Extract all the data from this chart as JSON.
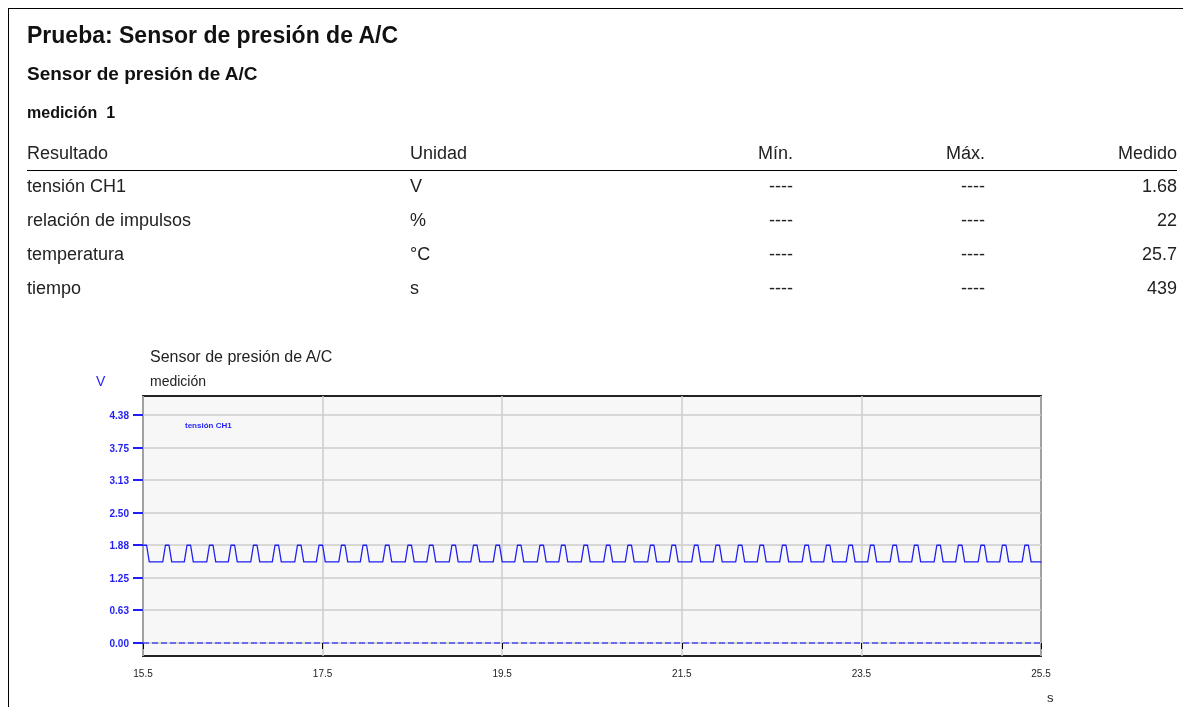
{
  "chart_data": [
    {
      "type": "other",
      "title": "Prueba: Sensor de presión de A/C",
      "subtitle": "Sensor de presión de A/C",
      "annotations": [
        "medición  1",
        "Resultado",
        "Unidad",
        "Mín.",
        "Máx.",
        "Medido",
        "tensión CH1",
        "V",
        "----",
        "----",
        "1.68",
        "relación de impulsos",
        "%",
        "----",
        "----",
        "22",
        "temperatura",
        "°C",
        "----",
        "----",
        "25.7",
        "tiempo",
        "s",
        "----",
        "----",
        "439"
      ]
    },
    {
      "type": "line",
      "title": "Sensor de presión de A/C",
      "subtitle": "medición",
      "ylabel": "V",
      "xlabel": "s",
      "xlim": [
        15.5,
        25.5
      ],
      "xticks": [
        15.5,
        17.5,
        19.5,
        21.5,
        23.5,
        25.5
      ],
      "ylim": [
        -0.25,
        4.75
      ],
      "yticks": [
        {
          "value": 0,
          "label": "0.00"
        },
        0.63,
        1.25,
        1.88,
        {
          "value": 2.5,
          "label": "2.50"
        },
        3.13,
        3.75,
        4.38
      ],
      "grid": true,
      "legend": "top left",
      "marker": "none",
      "line_style": "solid",
      "ref_lines": [
        {
          "axis": "y",
          "value": 0,
          "color": "#4a4af0",
          "line_style": "dashed"
        }
      ],
      "series": [
        {
          "name": "tensión CH1",
          "color": "#1f1ff5",
          "x": [
            15.5,
            15.54,
            15.57,
            15.72,
            15.75,
            15.79,
            15.82,
            15.96,
            15.99,
            16.03,
            16.06,
            16.21,
            16.24,
            16.28,
            16.31,
            16.45,
            16.48,
            16.52,
            16.55,
            16.7,
            16.73,
            16.77,
            16.8,
            16.94,
            16.97,
            17.01,
            17.04,
            17.19,
            17.22,
            17.26,
            17.29,
            17.43,
            17.46,
            17.5,
            17.53,
            17.68,
            17.71,
            17.75,
            17.78,
            17.92,
            17.95,
            17.99,
            18.02,
            18.17,
            18.2,
            18.24,
            18.27,
            18.42,
            18.45,
            18.49,
            18.52,
            18.66,
            18.69,
            18.73,
            18.76,
            18.91,
            18.94,
            18.98,
            19.01,
            19.15,
            19.18,
            19.22,
            19.25,
            19.4,
            19.43,
            19.47,
            19.5,
            19.64,
            19.67,
            19.71,
            19.74,
            19.89,
            19.92,
            19.96,
            19.99,
            20.13,
            20.16,
            20.2,
            20.23,
            20.38,
            20.41,
            20.45,
            20.48,
            20.63,
            20.66,
            20.7,
            20.73,
            20.87,
            20.9,
            20.94,
            20.97,
            21.12,
            21.15,
            21.19,
            21.22,
            21.36,
            21.39,
            21.43,
            21.46,
            21.61,
            21.64,
            21.68,
            21.71,
            21.85,
            21.88,
            21.92,
            21.95,
            22.1,
            22.13,
            22.17,
            22.2,
            22.34,
            22.37,
            22.41,
            22.44,
            22.59,
            22.62,
            22.66,
            22.69,
            22.84,
            22.87,
            22.91,
            22.94,
            23.08,
            23.11,
            23.15,
            23.18,
            23.33,
            23.36,
            23.4,
            23.43,
            23.57,
            23.6,
            23.64,
            23.67,
            23.82,
            23.85,
            23.89,
            23.92,
            24.06,
            24.09,
            24.13,
            24.16,
            24.31,
            24.34,
            24.38,
            24.41,
            24.55,
            24.58,
            24.62,
            24.65,
            24.8,
            24.83,
            24.87,
            24.9,
            25.04,
            25.07,
            25.11,
            25.14,
            25.29,
            25.32,
            25.36,
            25.39,
            25.5
          ],
          "values": [
            1.88,
            1.88,
            1.56,
            1.56,
            1.88,
            1.88,
            1.56,
            1.56,
            1.88,
            1.88,
            1.56,
            1.56,
            1.88,
            1.88,
            1.56,
            1.56,
            1.88,
            1.88,
            1.56,
            1.56,
            1.88,
            1.88,
            1.56,
            1.56,
            1.88,
            1.88,
            1.56,
            1.56,
            1.88,
            1.88,
            1.56,
            1.56,
            1.88,
            1.88,
            1.56,
            1.56,
            1.88,
            1.88,
            1.56,
            1.56,
            1.88,
            1.88,
            1.56,
            1.56,
            1.88,
            1.88,
            1.56,
            1.56,
            1.88,
            1.88,
            1.56,
            1.56,
            1.88,
            1.88,
            1.56,
            1.56,
            1.88,
            1.88,
            1.56,
            1.56,
            1.88,
            1.88,
            1.56,
            1.56,
            1.88,
            1.88,
            1.56,
            1.56,
            1.88,
            1.88,
            1.56,
            1.56,
            1.88,
            1.88,
            1.56,
            1.56,
            1.88,
            1.88,
            1.56,
            1.56,
            1.88,
            1.88,
            1.56,
            1.56,
            1.88,
            1.88,
            1.56,
            1.56,
            1.88,
            1.88,
            1.56,
            1.56,
            1.88,
            1.88,
            1.56,
            1.56,
            1.88,
            1.88,
            1.56,
            1.56,
            1.88,
            1.88,
            1.56,
            1.56,
            1.88,
            1.88,
            1.56,
            1.56,
            1.88,
            1.88,
            1.56,
            1.56,
            1.88,
            1.88,
            1.56,
            1.56,
            1.88,
            1.88,
            1.56,
            1.56,
            1.88,
            1.88,
            1.56,
            1.56,
            1.88,
            1.88,
            1.56,
            1.56,
            1.88,
            1.88,
            1.56,
            1.56,
            1.88,
            1.88,
            1.56,
            1.56,
            1.88,
            1.88,
            1.56,
            1.56,
            1.88,
            1.88,
            1.56,
            1.56,
            1.88,
            1.88,
            1.56,
            1.56,
            1.88,
            1.88,
            1.56,
            1.56,
            1.88,
            1.88,
            1.56,
            1.56,
            1.88,
            1.88,
            1.56,
            1.56,
            1.88,
            1.88,
            1.56,
            1.56
          ]
        }
      ]
    }
  ]
}
